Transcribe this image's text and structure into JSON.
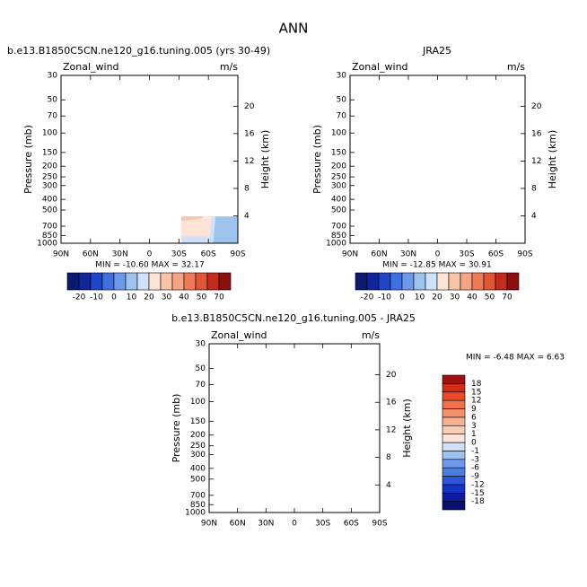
{
  "title": "ANN",
  "chart_data": [
    {
      "type": "contour",
      "title": "b.e13.B1850C5CN.ne120_g16.tuning.005 (yrs 30-49)",
      "left_string": "Zonal_wind",
      "right_string": "m/s",
      "ylabel": "Pressure (mb)",
      "y2label": "Height (km)",
      "stats": "MIN = -10.60   MAX =  32.17",
      "xlim": [
        90,
        -90
      ],
      "xticks": [
        {
          "value": 90,
          "label": "90N"
        },
        {
          "value": 60,
          "label": "60N"
        },
        {
          "value": 30,
          "label": "30N"
        },
        0,
        {
          "value": -30,
          "label": "30S"
        },
        {
          "value": -60,
          "label": "60S"
        },
        {
          "value": -90,
          "label": "90S"
        }
      ],
      "ylim": [
        30,
        1000
      ],
      "ylog": true,
      "yticks": [
        30,
        50,
        70,
        100,
        150,
        200,
        250,
        300,
        400,
        500,
        700,
        850,
        1000
      ],
      "y2lim": [
        0,
        24.5
      ],
      "y2ticks": [
        4,
        8,
        12,
        16,
        20
      ],
      "colorbar": {
        "orientation": "horizontal",
        "levels": [
          -20,
          -10,
          0,
          10,
          20,
          30,
          40,
          50,
          70
        ],
        "colors": [
          "#0a1a6e",
          "#10249c",
          "#1f45c8",
          "#3f6fe0",
          "#6e98ec",
          "#9ec2ee",
          "#cfe2fa",
          "#fde4d6",
          "#f9c4aa",
          "#f5a585",
          "#ee7a58",
          "#e05535",
          "#c42a1e",
          "#8a1010"
        ]
      }
    },
    {
      "type": "contour",
      "title": "JRA25",
      "left_string": "Zonal_wind",
      "right_string": "m/s",
      "ylabel": "Pressure (mb)",
      "y2label": "Height (km)",
      "stats": "MIN = -12.85   MAX =  30.91",
      "xlim": [
        90,
        -90
      ],
      "xticks": [
        {
          "value": 90,
          "label": "90N"
        },
        {
          "value": 60,
          "label": "60N"
        },
        {
          "value": 30,
          "label": "30N"
        },
        0,
        {
          "value": -30,
          "label": "30S"
        },
        {
          "value": -60,
          "label": "60S"
        },
        {
          "value": -90,
          "label": "90S"
        }
      ],
      "ylim": [
        30,
        1000
      ],
      "ylog": true,
      "yticks": [
        30,
        50,
        70,
        100,
        150,
        200,
        250,
        300,
        400,
        500,
        700,
        850,
        1000
      ],
      "y2lim": [
        0,
        24.5
      ],
      "y2ticks": [
        4,
        8,
        12,
        16,
        20
      ],
      "colorbar": {
        "orientation": "horizontal",
        "levels": [
          -20,
          -10,
          0,
          10,
          20,
          30,
          40,
          50,
          70
        ],
        "colors": [
          "#0a1a6e",
          "#10249c",
          "#1f45c8",
          "#3f6fe0",
          "#6e98ec",
          "#9ec2ee",
          "#cfe2fa",
          "#fde4d6",
          "#f9c4aa",
          "#f5a585",
          "#ee7a58",
          "#e05535",
          "#c42a1e",
          "#8a1010"
        ]
      }
    },
    {
      "type": "contour",
      "title": "b.e13.B1850C5CN.ne120_g16.tuning.005 - JRA25",
      "left_string": "Zonal_wind",
      "right_string": "m/s",
      "ylabel": "Pressure (mb)",
      "y2label": "Height (km)",
      "stats": "MIN =  -6.48   MAX =   6.63",
      "xlim": [
        90,
        -90
      ],
      "xticks": [
        {
          "value": 90,
          "label": "90N"
        },
        {
          "value": 60,
          "label": "60N"
        },
        {
          "value": 30,
          "label": "30N"
        },
        0,
        {
          "value": -30,
          "label": "30S"
        },
        {
          "value": -60,
          "label": "60S"
        },
        {
          "value": -90,
          "label": "90S"
        }
      ],
      "ylim": [
        30,
        1000
      ],
      "ylog": true,
      "yticks": [
        30,
        50,
        70,
        100,
        150,
        200,
        250,
        300,
        400,
        500,
        700,
        850,
        1000
      ],
      "y2lim": [
        0,
        24.5
      ],
      "y2ticks": [
        4,
        8,
        12,
        16,
        20
      ],
      "colorbar": {
        "orientation": "vertical",
        "levels": [
          -18,
          -15,
          -12,
          -9,
          -6,
          -3,
          -1,
          0,
          1,
          3,
          6,
          9,
          12,
          15,
          18
        ],
        "colors": [
          "#08106e",
          "#0c1ca0",
          "#1434c8",
          "#2a55dc",
          "#4a7fe0",
          "#6e98ec",
          "#9ec2ee",
          "#cfe2fa",
          "#fde4d6",
          "#fbcdb4",
          "#f8b090",
          "#f5916c",
          "#f0704a",
          "#e84a2a",
          "#d42a18",
          "#a01010"
        ]
      }
    }
  ]
}
